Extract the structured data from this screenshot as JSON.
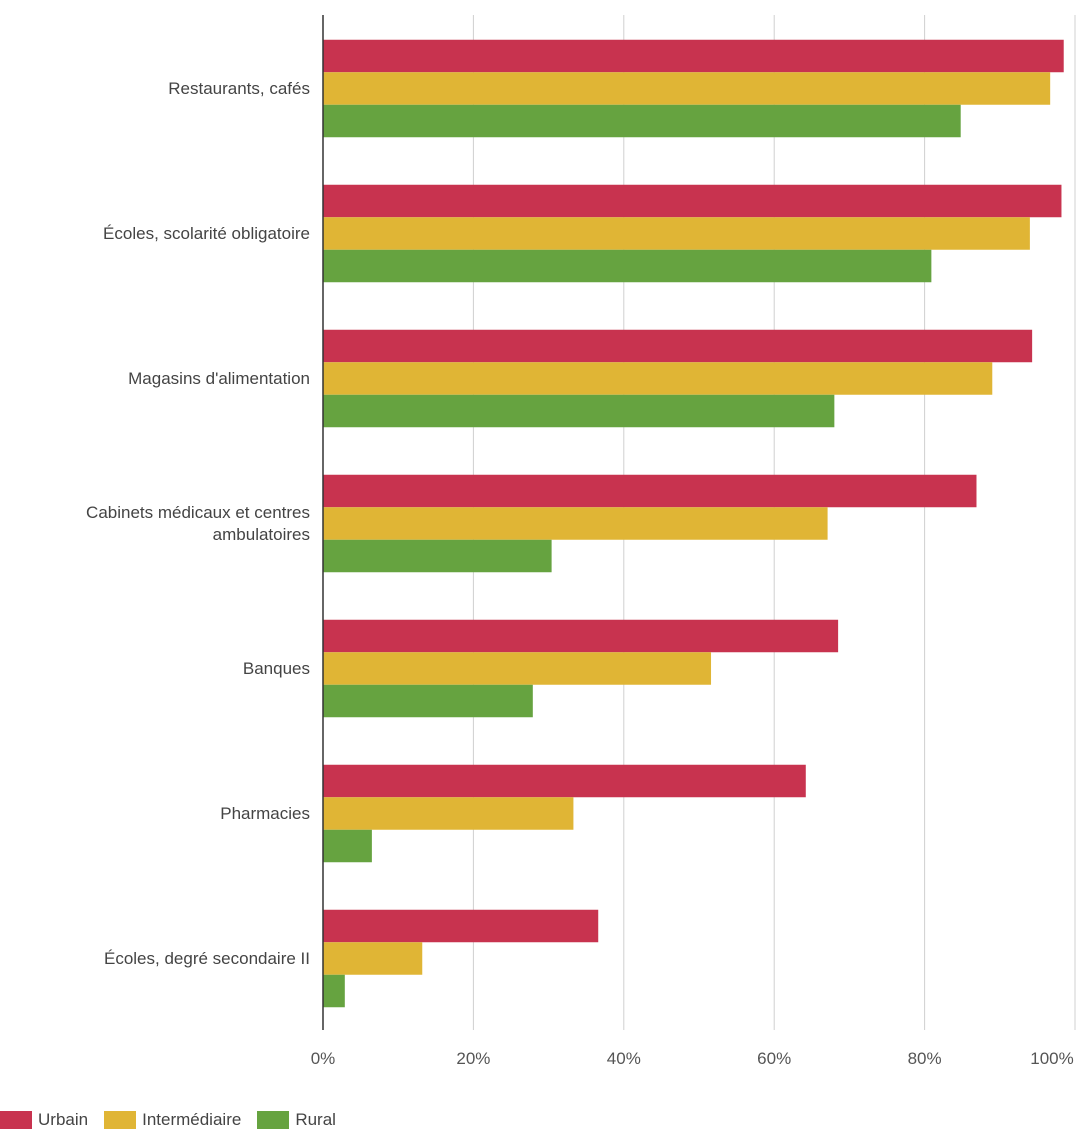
{
  "chart_data": {
    "type": "bar",
    "orientation": "horizontal",
    "categories": [
      "Restaurants, cafés",
      "Écoles, scolarité obligatoire",
      "Magasins d'alimentation",
      "Cabinets médicaux et centres ambulatoires",
      "Banques",
      "Pharmacies",
      "Écoles, degré secondaire II"
    ],
    "series": [
      {
        "name": "Urbain",
        "color": "#c8334f",
        "values": [
          98.5,
          98.2,
          94.3,
          86.9,
          68.5,
          64.2,
          36.6
        ]
      },
      {
        "name": "Intermédiaire",
        "color": "#e0b535",
        "values": [
          96.7,
          94.0,
          89.0,
          67.1,
          51.6,
          33.3,
          13.2
        ]
      },
      {
        "name": "Rural",
        "color": "#66a340",
        "values": [
          84.8,
          80.9,
          68.0,
          30.4,
          27.9,
          6.5,
          2.9
        ]
      }
    ],
    "x_ticks": [
      "0%",
      "20%",
      "40%",
      "60%",
      "80%",
      "100%"
    ],
    "xlim": [
      0,
      100
    ],
    "grid": true,
    "legend_position": "bottom-left"
  }
}
